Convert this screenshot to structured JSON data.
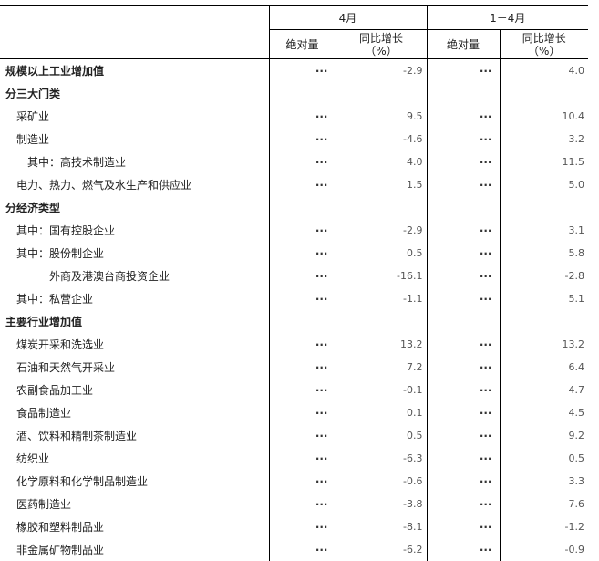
{
  "header": {
    "group1": "4月",
    "group2": "1－4月",
    "abs": "绝对量",
    "yoy": "同比增长",
    "pct": "（%）"
  },
  "rows": [
    {
      "label": "规模以上工业增加值",
      "style": "bold",
      "abs1": "···",
      "yoy1": "-2.9",
      "abs2": "···",
      "yoy2": "4.0"
    },
    {
      "label": "分三大门类",
      "style": "bold",
      "abs1": "",
      "yoy1": "",
      "abs2": "",
      "yoy2": ""
    },
    {
      "label": "采矿业",
      "style": "i1",
      "abs1": "···",
      "yoy1": "9.5",
      "abs2": "···",
      "yoy2": "10.4"
    },
    {
      "label": "制造业",
      "style": "i1",
      "abs1": "···",
      "yoy1": "-4.6",
      "abs2": "···",
      "yoy2": "3.2"
    },
    {
      "label": "其中：高技术制造业",
      "style": "i2",
      "abs1": "···",
      "yoy1": "4.0",
      "abs2": "···",
      "yoy2": "11.5"
    },
    {
      "label": "电力、热力、燃气及水生产和供应业",
      "style": "i1",
      "abs1": "···",
      "yoy1": "1.5",
      "abs2": "···",
      "yoy2": "5.0"
    },
    {
      "label": "分经济类型",
      "style": "bold",
      "abs1": "",
      "yoy1": "",
      "abs2": "",
      "yoy2": ""
    },
    {
      "label": "其中：国有控股企业",
      "style": "i1",
      "abs1": "···",
      "yoy1": "-2.9",
      "abs2": "···",
      "yoy2": "3.1"
    },
    {
      "label": "其中：股份制企业",
      "style": "i1",
      "abs1": "···",
      "yoy1": "0.5",
      "abs2": "···",
      "yoy2": "5.8"
    },
    {
      "label": "外商及港澳台商投资企业",
      "style": "i3",
      "abs1": "···",
      "yoy1": "-16.1",
      "abs2": "···",
      "yoy2": "-2.8"
    },
    {
      "label": "其中：私营企业",
      "style": "i1",
      "abs1": "···",
      "yoy1": "-1.1",
      "abs2": "···",
      "yoy2": "5.1"
    },
    {
      "label": "主要行业增加值",
      "style": "bold",
      "abs1": "",
      "yoy1": "",
      "abs2": "",
      "yoy2": ""
    },
    {
      "label": "煤炭开采和洗选业",
      "style": "i1",
      "abs1": "···",
      "yoy1": "13.2",
      "abs2": "···",
      "yoy2": "13.2"
    },
    {
      "label": "石油和天然气开采业",
      "style": "i1",
      "abs1": "···",
      "yoy1": "7.2",
      "abs2": "···",
      "yoy2": "6.4"
    },
    {
      "label": "农副食品加工业",
      "style": "i1",
      "abs1": "···",
      "yoy1": "-0.1",
      "abs2": "···",
      "yoy2": "4.7"
    },
    {
      "label": "食品制造业",
      "style": "i1",
      "abs1": "···",
      "yoy1": "0.1",
      "abs2": "···",
      "yoy2": "4.5"
    },
    {
      "label": "酒、饮料和精制茶制造业",
      "style": "i1",
      "abs1": "···",
      "yoy1": "0.5",
      "abs2": "···",
      "yoy2": "9.2"
    },
    {
      "label": "纺织业",
      "style": "i1",
      "abs1": "···",
      "yoy1": "-6.3",
      "abs2": "···",
      "yoy2": "0.5"
    },
    {
      "label": "化学原料和化学制品制造业",
      "style": "i1",
      "abs1": "···",
      "yoy1": "-0.6",
      "abs2": "···",
      "yoy2": "3.3"
    },
    {
      "label": "医药制造业",
      "style": "i1",
      "abs1": "···",
      "yoy1": "-3.8",
      "abs2": "···",
      "yoy2": "7.6"
    },
    {
      "label": "橡胶和塑料制品业",
      "style": "i1",
      "abs1": "···",
      "yoy1": "-8.1",
      "abs2": "···",
      "yoy2": "-1.2"
    },
    {
      "label": "非金属矿物制品业",
      "style": "i1",
      "abs1": "···",
      "yoy1": "-6.2",
      "abs2": "···",
      "yoy2": "-0.9"
    }
  ]
}
